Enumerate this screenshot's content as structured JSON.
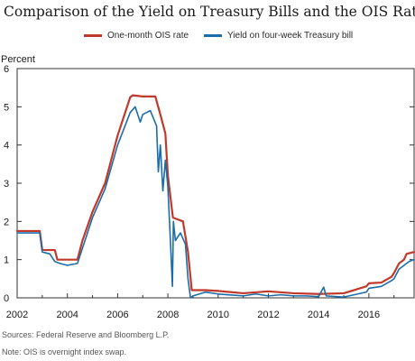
{
  "title": "Comparison of the Yield on Treasury Bills and the OIS Rate",
  "legend": {
    "ois_label": "One-month OIS rate",
    "tbill_label": "Yield on four-week Treasury bill"
  },
  "y_unit": "Percent",
  "notes": {
    "sources": "Sources: Federal Reserve and Bloomberg L.P.",
    "note": "Note: OIS is overnight index swap."
  },
  "colors": {
    "ois": "#c0392b",
    "tbill": "#1b6ca8",
    "axis": "#333333"
  },
  "chart_data": {
    "type": "line",
    "title": "Comparison of the Yield on Treasury Bills and the OIS Rate",
    "xlabel": "",
    "ylabel": "Percent",
    "xlim": [
      2002,
      2017.8
    ],
    "ylim": [
      0,
      6
    ],
    "x_ticks": [
      2002,
      2004,
      2006,
      2008,
      2010,
      2012,
      2014,
      2016
    ],
    "y_ticks": [
      0,
      1,
      2,
      3,
      4,
      5,
      6
    ],
    "grid": false,
    "legend_position": "top-center",
    "series": [
      {
        "name": "One-month OIS rate",
        "x": [
          2002.0,
          2002.9,
          2003.0,
          2003.5,
          2003.6,
          2004.4,
          2004.6,
          2005.0,
          2005.5,
          2006.0,
          2006.5,
          2006.6,
          2007.0,
          2007.5,
          2007.7,
          2007.9,
          2008.0,
          2008.2,
          2008.6,
          2008.8,
          2008.95,
          2009.5,
          2010.0,
          2011.0,
          2012.0,
          2013.0,
          2014.0,
          2015.0,
          2015.9,
          2016.0,
          2016.5,
          2016.9,
          2017.0,
          2017.2,
          2017.4,
          2017.5,
          2017.8
        ],
        "y": [
          1.75,
          1.75,
          1.25,
          1.25,
          1.0,
          1.0,
          1.5,
          2.25,
          3.0,
          4.25,
          5.25,
          5.3,
          5.27,
          5.27,
          4.8,
          4.3,
          3.2,
          2.1,
          2.0,
          1.2,
          0.2,
          0.2,
          0.18,
          0.12,
          0.17,
          0.12,
          0.1,
          0.12,
          0.3,
          0.38,
          0.4,
          0.55,
          0.65,
          0.9,
          1.0,
          1.15,
          1.2
        ]
      },
      {
        "name": "Yield on four-week Treasury bill",
        "x": [
          2002.0,
          2002.9,
          2003.0,
          2003.3,
          2003.5,
          2003.7,
          2004.0,
          2004.4,
          2004.6,
          2005.0,
          2005.5,
          2006.0,
          2006.5,
          2006.7,
          2006.9,
          2007.0,
          2007.3,
          2007.55,
          2007.62,
          2007.7,
          2007.8,
          2007.9,
          2008.0,
          2008.1,
          2008.18,
          2008.22,
          2008.3,
          2008.5,
          2008.7,
          2008.8,
          2008.9,
          2009.0,
          2009.5,
          2010.0,
          2011.0,
          2011.5,
          2012.0,
          2012.5,
          2013.0,
          2013.5,
          2014.0,
          2014.2,
          2014.3,
          2015.0,
          2015.9,
          2016.0,
          2016.5,
          2016.9,
          2017.0,
          2017.2,
          2017.4,
          2017.6,
          2017.8
        ],
        "y": [
          1.7,
          1.7,
          1.2,
          1.15,
          0.95,
          0.9,
          0.85,
          0.9,
          1.3,
          2.1,
          2.85,
          4.0,
          4.85,
          5.0,
          4.6,
          4.8,
          4.9,
          4.5,
          3.3,
          4.0,
          2.8,
          3.6,
          2.9,
          1.5,
          0.3,
          2.0,
          1.5,
          1.7,
          1.4,
          0.5,
          0.0,
          0.05,
          0.15,
          0.1,
          0.05,
          0.1,
          0.05,
          0.08,
          0.05,
          0.05,
          0.03,
          0.28,
          0.05,
          0.02,
          0.15,
          0.25,
          0.3,
          0.45,
          0.5,
          0.75,
          0.85,
          0.95,
          1.0
        ]
      }
    ]
  }
}
